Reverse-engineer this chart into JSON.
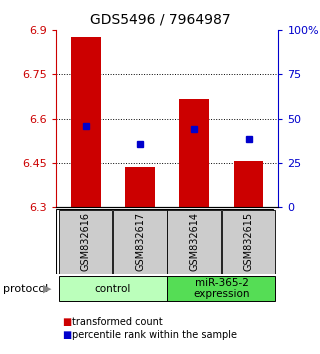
{
  "title": "GDS5496 / 7964987",
  "samples": [
    "GSM832616",
    "GSM832617",
    "GSM832614",
    "GSM832615"
  ],
  "bar_values": [
    6.875,
    6.435,
    6.665,
    6.455
  ],
  "dot_values": [
    6.575,
    6.515,
    6.565,
    6.53
  ],
  "bar_base": 6.3,
  "ylim": [
    6.3,
    6.9
  ],
  "y_ticks_left": [
    6.3,
    6.45,
    6.6,
    6.75,
    6.9
  ],
  "y_ticks_right": [
    0,
    25,
    50,
    75,
    100
  ],
  "bar_color": "#cc0000",
  "dot_color": "#0000cc",
  "groups": [
    {
      "label": "control",
      "samples": [
        0,
        1
      ],
      "color": "#bbffbb"
    },
    {
      "label": "miR-365-2\nexpression",
      "samples": [
        2,
        3
      ],
      "color": "#55dd55"
    }
  ],
  "sample_box_color": "#cccccc",
  "protocol_label": "protocol",
  "legend_bar_label": "transformed count",
  "legend_dot_label": "percentile rank within the sample",
  "bar_width": 0.55,
  "title_fontsize": 10,
  "tick_fontsize": 8,
  "label_fontsize": 7.5
}
